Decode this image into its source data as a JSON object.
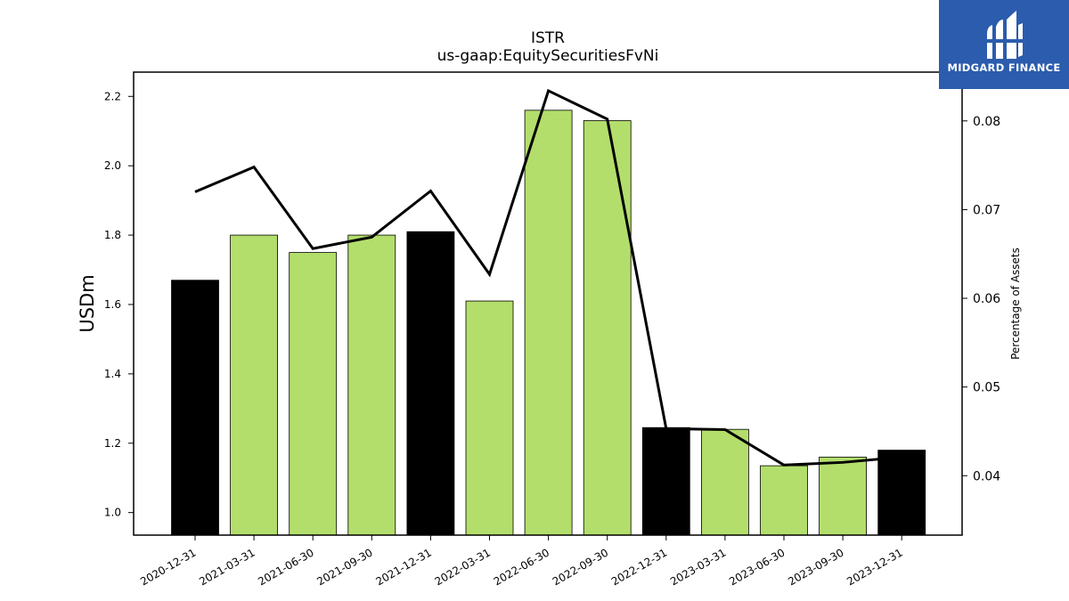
{
  "chart_data": {
    "type": "bar",
    "title": "ISTR",
    "subtitle": "us-gaap:EquitySecuritiesFvNi",
    "ylabel": "USDm",
    "y2label": "Percentage of Assets",
    "categories": [
      "2020-12-31",
      "2021-03-31",
      "2021-06-30",
      "2021-09-30",
      "2021-12-31",
      "2022-03-31",
      "2022-06-30",
      "2022-09-30",
      "2022-12-31",
      "2023-03-31",
      "2023-06-30",
      "2023-09-30",
      "2023-12-31"
    ],
    "values": [
      1.67,
      1.8,
      1.75,
      1.8,
      1.81,
      1.61,
      2.16,
      2.13,
      1.245,
      1.24,
      1.135,
      1.16,
      1.18
    ],
    "bar_colors": [
      "#000000",
      "#b3de6b",
      "#b3de6b",
      "#b3de6b",
      "#000000",
      "#b3de6b",
      "#b3de6b",
      "#b3de6b",
      "#000000",
      "#b3de6b",
      "#b3de6b",
      "#b3de6b",
      "#000000"
    ],
    "line_series": {
      "values": [
        0.072,
        0.0748,
        0.0656,
        0.0669,
        0.0721,
        0.0627,
        0.0834,
        0.0802,
        0.0453,
        0.0452,
        0.0412,
        0.0415,
        0.0421
      ]
    },
    "ylim": [
      0.935,
      2.27
    ],
    "y2lim": [
      0.0333,
      0.0855
    ],
    "yticks": [
      "1.0",
      "1.2",
      "1.4",
      "1.6",
      "1.8",
      "2.0",
      "2.2"
    ],
    "y2ticks": [
      "0.04",
      "0.05",
      "0.06",
      "0.07",
      "0.08"
    ],
    "grid": false,
    "legend": "none"
  },
  "logo": {
    "text": "MIDGARD FINANCE",
    "bg_color": "#2b5cad"
  }
}
